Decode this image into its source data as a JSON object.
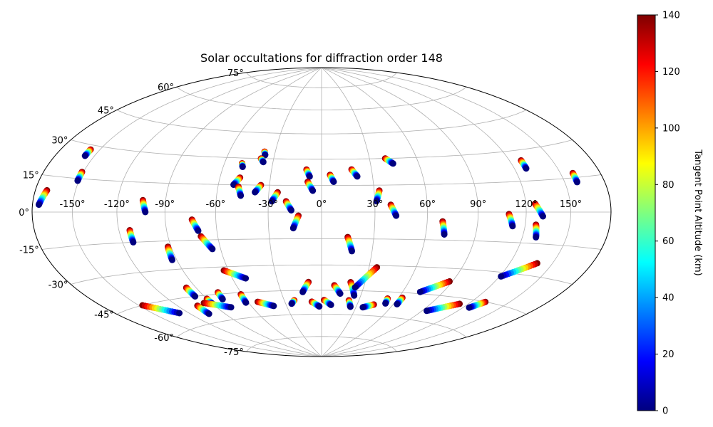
{
  "chart_data": {
    "type": "scatter",
    "projection": "hammer",
    "title": "Solar occultations for diffraction order 148",
    "xlabel": "",
    "ylabel": "",
    "grid": true,
    "xlim": [
      -180,
      180
    ],
    "ylim": [
      -90,
      90
    ],
    "lon_ticks": [
      -150,
      -120,
      -90,
      -60,
      -30,
      0,
      30,
      60,
      90,
      120,
      150
    ],
    "lon_tick_labels": [
      "-150°",
      "-120°",
      "-90°",
      "-60°",
      "-30°",
      "0°",
      "30°",
      "60°",
      "90°",
      "120°",
      "150°"
    ],
    "lat_ticks": [
      -75,
      -60,
      -45,
      -30,
      -15,
      0,
      15,
      30,
      45,
      60,
      75
    ],
    "lat_tick_labels": [
      "-75°",
      "-60°",
      "-45°",
      "-30°",
      "-15°",
      "0°",
      "15°",
      "30°",
      "45°",
      "60°",
      "75°"
    ],
    "colorbar": {
      "label": "Tangent Point Altitude (km)",
      "colormap": "jet",
      "range": [
        0,
        140
      ],
      "ticks": [
        0,
        20,
        40,
        60,
        80,
        100,
        120,
        140
      ],
      "tick_labels": [
        "0",
        "20",
        "40",
        "60",
        "80",
        "100",
        "120",
        "140"
      ],
      "colors": [
        "#00007f",
        "#0000ff",
        "#007fff",
        "#00ffff",
        "#7fff7f",
        "#ffff00",
        "#ff7f00",
        "#ff0000",
        "#7f0000"
      ]
    },
    "value_encoding": "each track lists latitude/longitude in degrees at the top (140 km) and bottom (0 km) of the occultation",
    "series": [
      {
        "lat_top": 9,
        "lon_top": -171,
        "lat_bottom": 3,
        "lon_bottom": -175
      },
      {
        "lat_top": 28,
        "lon_top": -157,
        "lat_bottom": 25,
        "lon_bottom": -157
      },
      {
        "lat_top": 18,
        "lon_top": -151,
        "lat_bottom": 14,
        "lon_bottom": -151
      },
      {
        "lat_top": -45,
        "lon_top": -147,
        "lat_bottom": -52,
        "lon_bottom": -128
      },
      {
        "lat_top": -9,
        "lon_top": -113,
        "lat_bottom": -15,
        "lon_bottom": -113
      },
      {
        "lat_top": 6,
        "lon_top": -104,
        "lat_bottom": 0,
        "lon_bottom": -102
      },
      {
        "lat_top": -18,
        "lon_top": -92,
        "lat_bottom": -25,
        "lon_bottom": -93
      },
      {
        "lat_top": -50,
        "lon_top": -104,
        "lat_bottom": -55,
        "lon_bottom": -104
      },
      {
        "lat_top": -40,
        "lon_top": -97,
        "lat_bottom": -45,
        "lon_bottom": -97
      },
      {
        "lat_top": -47,
        "lon_top": -90,
        "lat_bottom": -50,
        "lon_bottom": -90
      },
      {
        "lat_top": -49,
        "lon_top": -96,
        "lat_bottom": -53,
        "lon_bottom": -78
      },
      {
        "lat_top": -4,
        "lon_top": -74,
        "lat_bottom": -10,
        "lon_bottom": -71
      },
      {
        "lat_top": -13,
        "lon_top": -70,
        "lat_bottom": -20,
        "lon_bottom": -65
      },
      {
        "lat_top": -44,
        "lon_top": -77,
        "lat_bottom": -48,
        "lon_bottom": -78
      },
      {
        "lat_top": -32,
        "lon_top": -63,
        "lat_bottom": -37,
        "lon_bottom": -51
      },
      {
        "lat_top": -46,
        "lon_top": -61,
        "lat_bottom": -51,
        "lon_bottom": -62
      },
      {
        "lat_top": -51,
        "lon_top": -52,
        "lat_bottom": -54,
        "lon_bottom": -41
      },
      {
        "lat_top": 27,
        "lon_top": -49,
        "lat_bottom": 25,
        "lon_bottom": -48
      },
      {
        "lat_top": 19,
        "lon_top": -48,
        "lat_bottom": 15,
        "lon_bottom": -51
      },
      {
        "lat_top": 14,
        "lon_top": -48,
        "lat_bottom": 9,
        "lon_bottom": -46
      },
      {
        "lat_top": 34,
        "lon_top": -37,
        "lat_bottom": 32,
        "lon_bottom": -36
      },
      {
        "lat_top": 30,
        "lon_top": -38,
        "lat_bottom": 28,
        "lon_bottom": -36
      },
      {
        "lat_top": 15,
        "lon_top": -35,
        "lat_bottom": 11,
        "lon_bottom": -38
      },
      {
        "lat_top": 11,
        "lon_top": -25,
        "lat_bottom": 6,
        "lon_bottom": -28
      },
      {
        "lat_top": 6,
        "lon_top": -20,
        "lat_bottom": 1,
        "lon_bottom": -17
      },
      {
        "lat_top": -2,
        "lon_top": -13,
        "lat_bottom": -9,
        "lon_bottom": -16
      },
      {
        "lat_top": -51,
        "lon_top": -22,
        "lat_bottom": -53,
        "lon_bottom": -25
      },
      {
        "lat_top": -40,
        "lon_top": -9,
        "lat_bottom": -46,
        "lon_bottom": -14
      },
      {
        "lat_top": -52,
        "lon_top": -8,
        "lat_bottom": -55,
        "lon_bottom": -2
      },
      {
        "lat_top": 24,
        "lon_top": -9,
        "lat_bottom": 20,
        "lon_bottom": -7
      },
      {
        "lat_top": 17,
        "lon_top": -8,
        "lat_bottom": 12,
        "lon_bottom": -5
      },
      {
        "lat_top": 21,
        "lon_top": 5,
        "lat_bottom": 17,
        "lon_bottom": 7
      },
      {
        "lat_top": 24,
        "lon_top": 18,
        "lat_bottom": 20,
        "lon_bottom": 21
      },
      {
        "lat_top": -51,
        "lon_top": 2,
        "lat_bottom": -54,
        "lon_bottom": 8
      },
      {
        "lat_top": -42,
        "lon_top": 9,
        "lat_bottom": -47,
        "lon_bottom": 14
      },
      {
        "lat_top": -14,
        "lon_top": 15,
        "lat_bottom": -22,
        "lon_bottom": 18
      },
      {
        "lat_top": -40,
        "lon_top": 20,
        "lat_bottom": -48,
        "lon_bottom": 25
      },
      {
        "lat_top": -31,
        "lon_top": 35,
        "lat_bottom": -43,
        "lon_bottom": 24
      },
      {
        "lat_top": -51,
        "lon_top": 22,
        "lat_bottom": -55,
        "lon_bottom": 25
      },
      {
        "lat_top": 12,
        "lon_top": 33,
        "lat_bottom": 6,
        "lon_bottom": 31
      },
      {
        "lat_top": 4,
        "lon_top": 39,
        "lat_bottom": -2,
        "lon_bottom": 42
      },
      {
        "lat_top": 30,
        "lon_top": 40,
        "lat_bottom": 27,
        "lon_bottom": 44
      },
      {
        "lat_top": -53,
        "lon_top": 44,
        "lat_bottom": -55,
        "lon_bottom": 36
      },
      {
        "lat_top": -49,
        "lon_top": 52,
        "lat_bottom": -52,
        "lon_bottom": 53
      },
      {
        "lat_top": -48,
        "lon_top": 63,
        "lat_bottom": -52,
        "lon_bottom": 63
      },
      {
        "lat_top": -5,
        "lon_top": 69,
        "lat_bottom": -12,
        "lon_bottom": 71
      },
      {
        "lat_top": -37,
        "lon_top": 88,
        "lat_bottom": -44,
        "lon_bottom": 73
      },
      {
        "lat_top": -1,
        "lon_top": 109,
        "lat_bottom": -7,
        "lon_bottom": 112
      },
      {
        "lat_top": -48,
        "lon_top": 113,
        "lat_bottom": -54,
        "lon_bottom": 94
      },
      {
        "lat_top": 4,
        "lon_top": 126,
        "lat_bottom": -2,
        "lon_bottom": 131
      },
      {
        "lat_top": -6,
        "lon_top": 127,
        "lat_bottom": -12,
        "lon_bottom": 129
      },
      {
        "lat_top": -24,
        "lon_top": 139,
        "lat_bottom": -32,
        "lon_bottom": 121
      },
      {
        "lat_top": 25,
        "lon_top": 128,
        "lat_bottom": 21,
        "lon_bottom": 128
      },
      {
        "lat_top": -45,
        "lon_top": 131,
        "lat_bottom": -49,
        "lon_bottom": 125
      },
      {
        "lat_top": 17,
        "lon_top": 159,
        "lat_bottom": 13,
        "lon_bottom": 159
      }
    ]
  }
}
